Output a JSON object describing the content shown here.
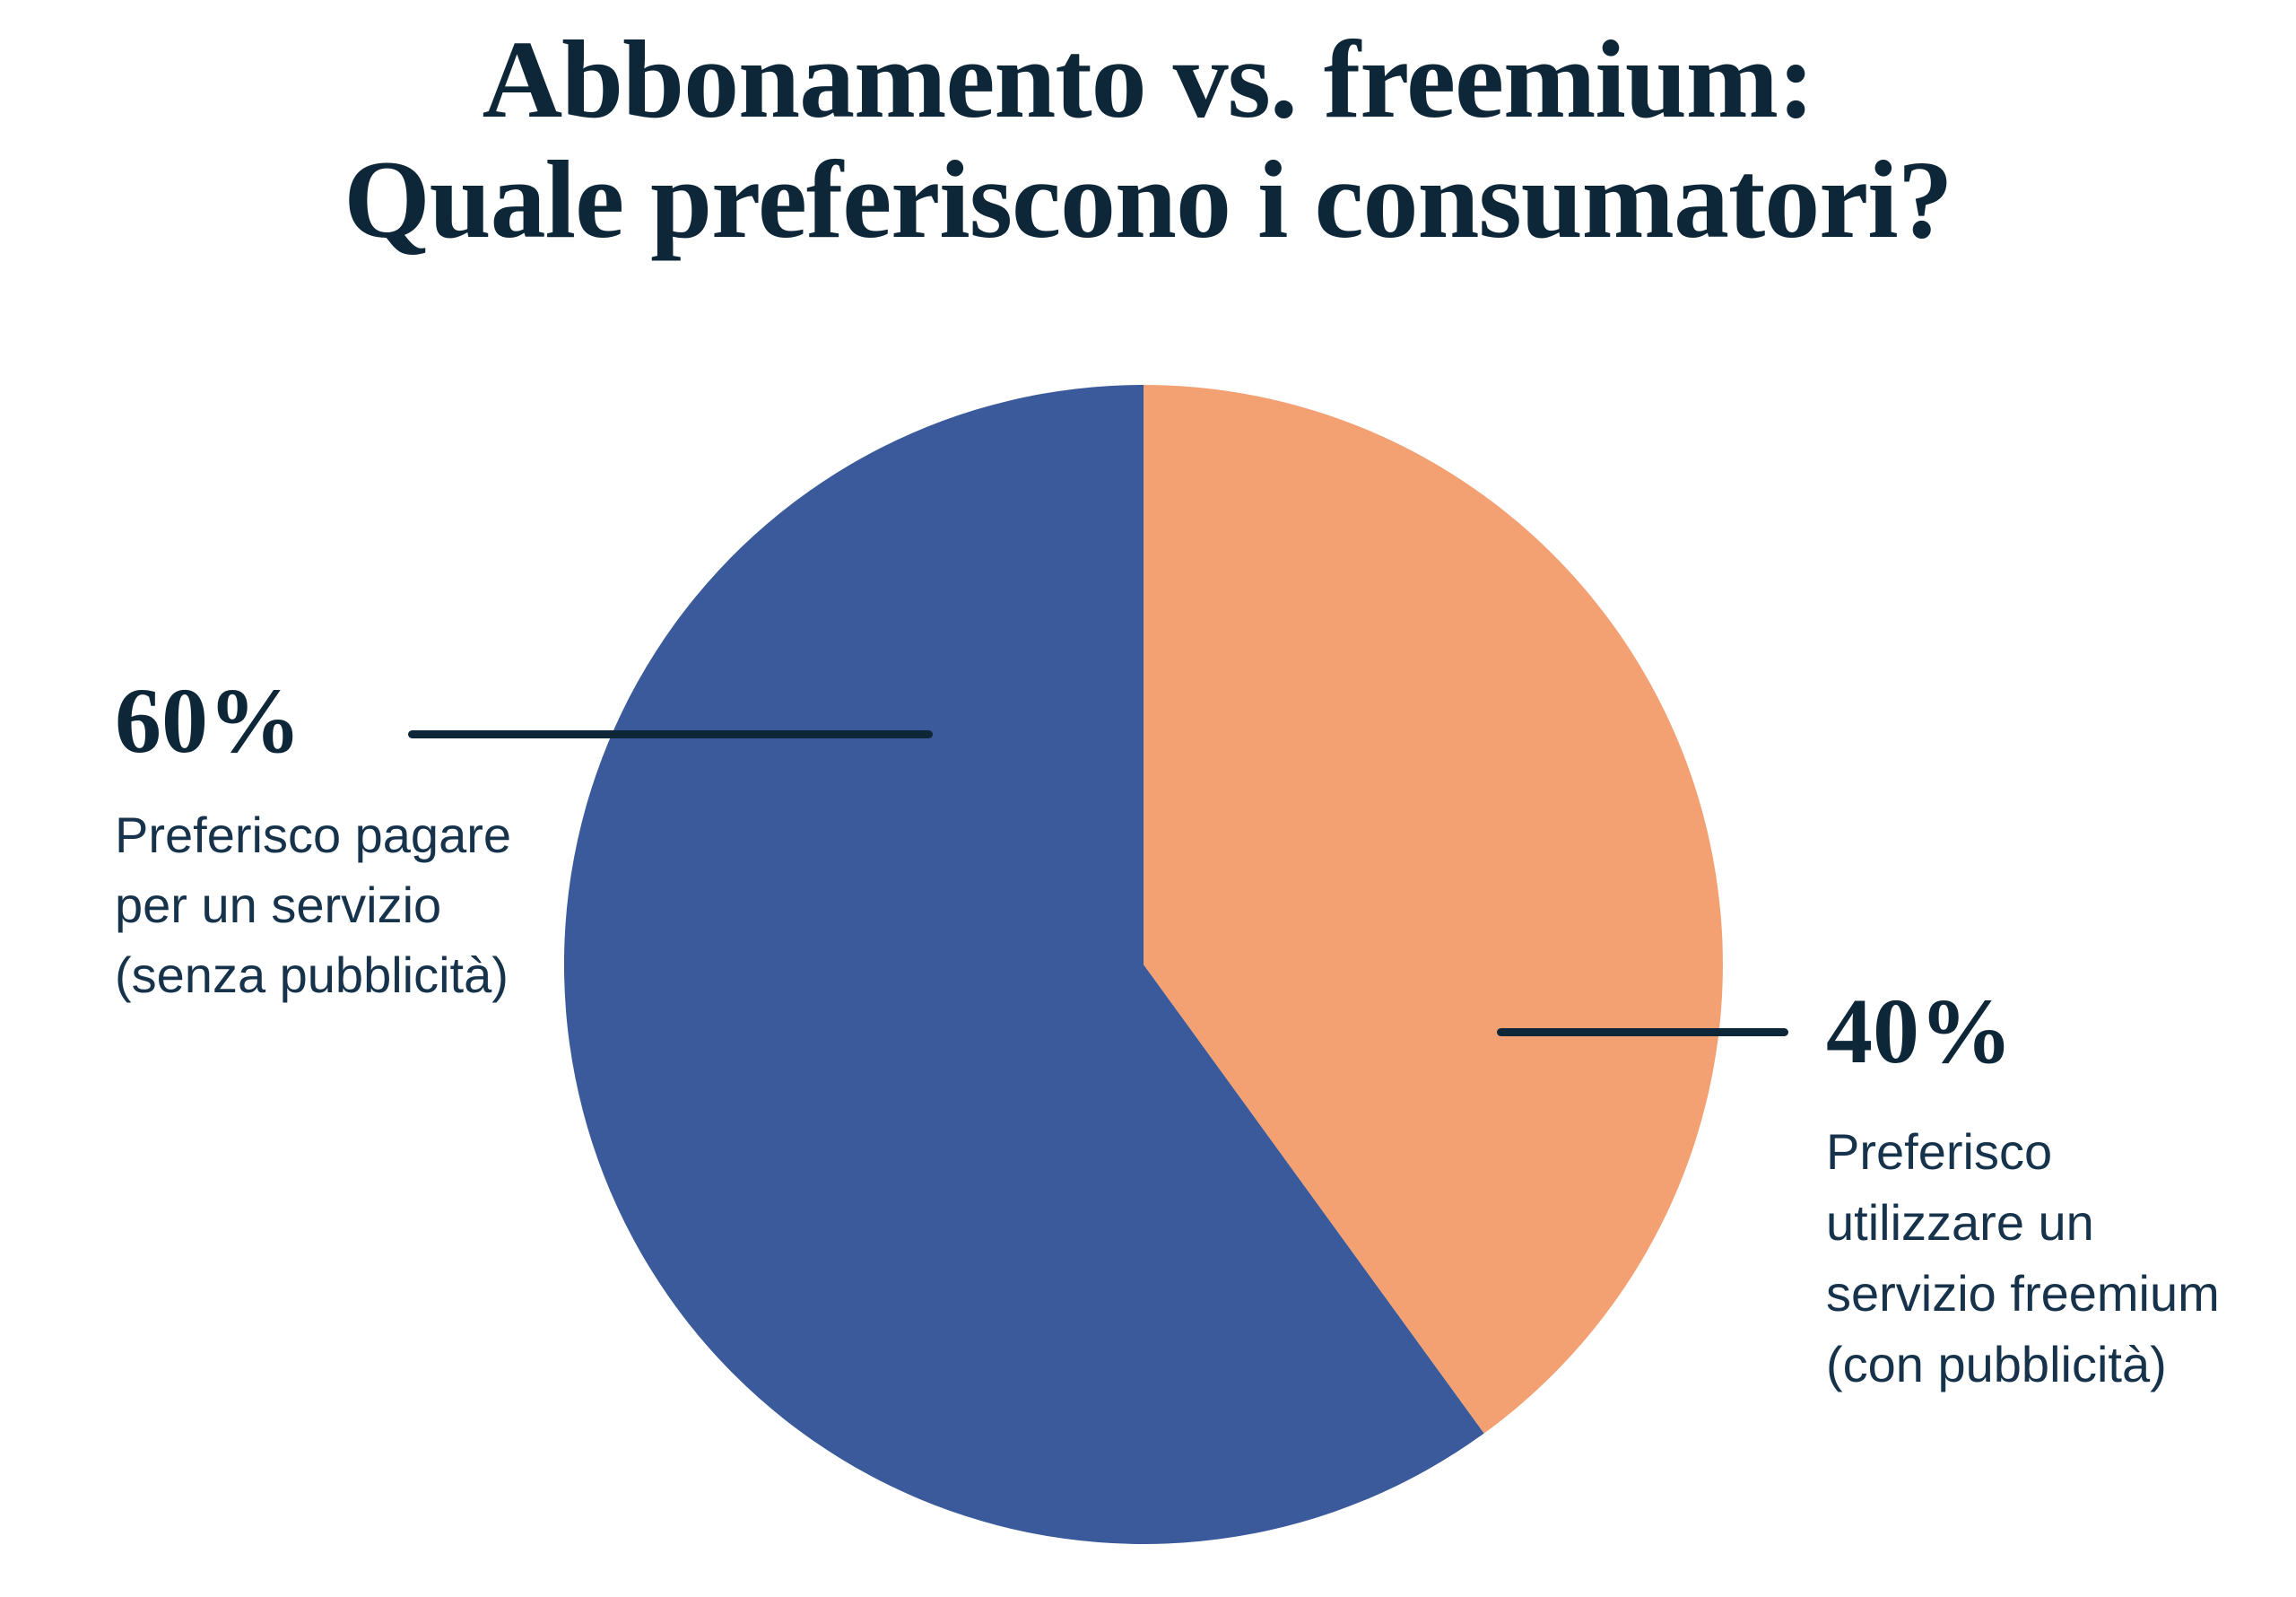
{
  "page": {
    "background": "#FFFFFF"
  },
  "title": {
    "line1": "Abbonamento vs. freemium:",
    "line2": "Quale preferiscono i consumatori?"
  },
  "chart_data": {
    "type": "pie",
    "title": "Abbonamento vs. freemium: Quale preferiscono i consumatori?",
    "start_angle": "12 o'clock",
    "direction": "counter-clockwise",
    "legend_position": "callout-labels",
    "slices": [
      {
        "label": "Preferisco pagare per un servizio (senza pubblicità)",
        "value": 60,
        "pct_label": "60%",
        "color": "#3A5A9B",
        "callout_side": "left"
      },
      {
        "label": "Preferisco utilizzare un servizio freemium (con pubblicità)",
        "value": 40,
        "pct_label": "40%",
        "color": "#F3A173",
        "callout_side": "right"
      }
    ]
  },
  "callouts": {
    "left": {
      "pct": "60%",
      "lines": [
        "Preferisco pagare",
        "per un servizio",
        "(senza pubblicità)"
      ]
    },
    "right": {
      "pct": "40%",
      "lines": [
        "Preferisco",
        "utilizzare un",
        "servizio freemium",
        "(con pubblicità)"
      ]
    }
  },
  "colors": {
    "slice_blue": "#3A5A9B",
    "slice_orange": "#F3A173",
    "text_navy": "#0E2738",
    "text_body": "#16334B",
    "leader_line": "#0E2738",
    "background": "#FFFFFF"
  }
}
